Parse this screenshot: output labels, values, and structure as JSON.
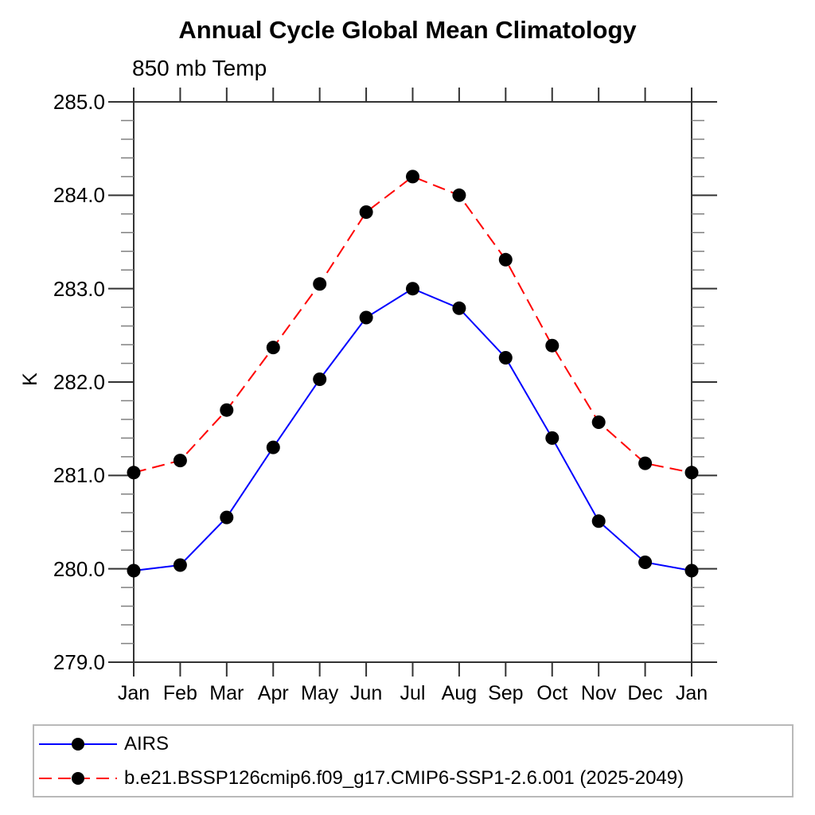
{
  "page": {
    "background": "#ffffff"
  },
  "chart_data": {
    "type": "line",
    "title": "Annual Cycle Global Mean Climatology",
    "subtitle": "850 mb Temp",
    "ylabel": "K",
    "x_categories": [
      "Jan",
      "Feb",
      "Mar",
      "Apr",
      "May",
      "Jun",
      "Jul",
      "Aug",
      "Sep",
      "Oct",
      "Nov",
      "Dec",
      "Jan"
    ],
    "ylim": [
      279.0,
      285.0
    ],
    "ytick_interval_major": 1.0,
    "ytick_interval_minor": 0.2,
    "ytick_labels": [
      "285.0",
      "284.0",
      "283.0",
      "282.0",
      "281.0",
      "280.0",
      "279.0"
    ],
    "grid": false,
    "axis_color": "#333333",
    "minor_tick_color": "#808080",
    "series": [
      {
        "name": "AIRS",
        "color": "#0000ff",
        "line_style": "solid",
        "marker": "circle",
        "marker_color": "#000000",
        "values": [
          279.98,
          280.04,
          280.55,
          281.3,
          282.03,
          282.69,
          283.0,
          282.79,
          282.26,
          281.4,
          280.51,
          280.07,
          279.98
        ]
      },
      {
        "name": "b.e21.BSSP126cmip6.f09_g17.CMIP6-SSP1-2.6.001 (2025-2049)",
        "color": "#ff0000",
        "line_style": "dashed",
        "marker": "circle",
        "marker_color": "#000000",
        "values": [
          281.03,
          281.16,
          281.7,
          282.37,
          283.05,
          283.82,
          284.2,
          284.0,
          283.31,
          282.39,
          281.57,
          281.13,
          281.03
        ]
      }
    ],
    "legend_position": "bottom"
  }
}
